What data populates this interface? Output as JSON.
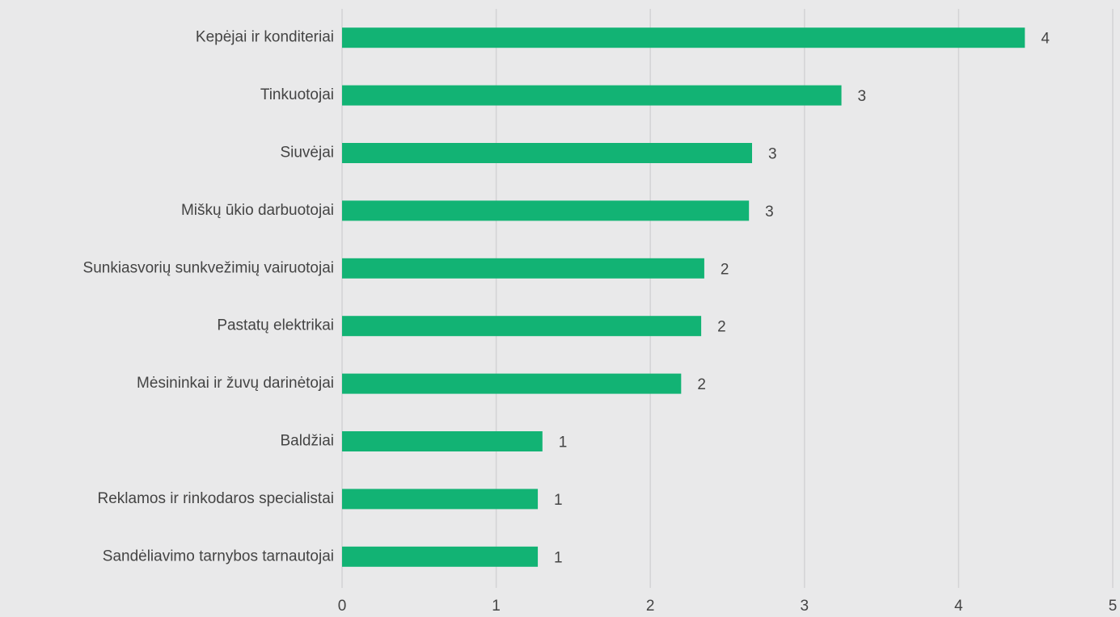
{
  "chart_data": {
    "type": "barh",
    "categories": [
      "Kepėjai ir konditeriai",
      "Tinkuotojai",
      "Siuvėjai",
      "Miškų ūkio darbuotojai",
      "Sunkiasvorių sunkvežimių vairuotojai",
      "Pastatų elektrikai",
      "Mėsininkai ir žuvų darinėtojai",
      "Baldžiai",
      "Reklamos ir rinkodaros specialistai",
      "Sandėliavimo tarnybos tarnautojai"
    ],
    "values": [
      4.43,
      3.24,
      2.66,
      2.64,
      2.35,
      2.33,
      2.2,
      1.3,
      1.27,
      1.27
    ],
    "value_labels": [
      "4",
      "3",
      "3",
      "3",
      "2",
      "2",
      "2",
      "1",
      "1",
      "1"
    ],
    "color": "#12b374",
    "xlim": [
      0,
      5
    ],
    "xticks": [
      0,
      1,
      2,
      3,
      4,
      5
    ],
    "grid": true
  }
}
